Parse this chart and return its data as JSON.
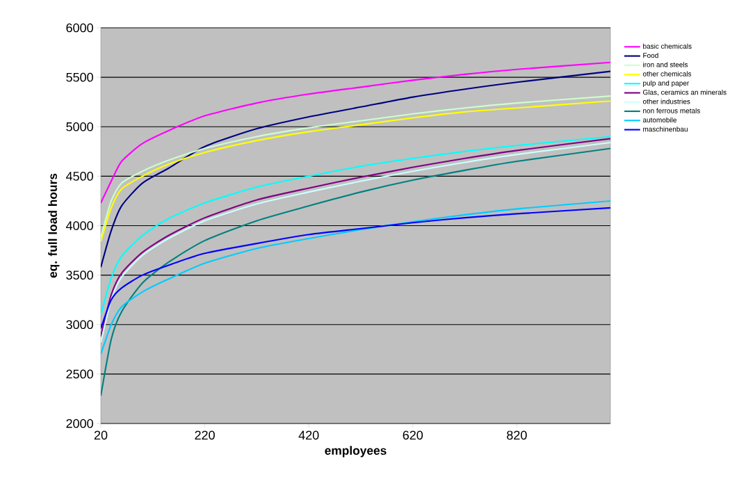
{
  "chart_data": {
    "type": "line",
    "xlabel": "employees",
    "ylabel": "eq. full load hours",
    "x": [
      20,
      40,
      60,
      100,
      150,
      220,
      320,
      420,
      520,
      620,
      720,
      820,
      1000
    ],
    "xlim": [
      20,
      1000
    ],
    "xticks": [
      20,
      220,
      420,
      620,
      820
    ],
    "ylim": [
      2000,
      6000
    ],
    "yticks": [
      2000,
      2500,
      3000,
      3500,
      4000,
      4500,
      5000,
      5500,
      6000
    ],
    "grid": "y",
    "legend": "right",
    "line_style": "solid",
    "series": [
      {
        "name": "basic chemicals",
        "color": "#ff00ff",
        "values": [
          4230,
          4450,
          4650,
          4830,
          4960,
          5110,
          5240,
          5330,
          5400,
          5470,
          5530,
          5580,
          5650
        ]
      },
      {
        "name": "Food",
        "color": "#000080",
        "values": [
          3580,
          3950,
          4200,
          4430,
          4580,
          4800,
          4980,
          5100,
          5200,
          5300,
          5380,
          5450,
          5560
        ]
      },
      {
        "name": "iron and steels",
        "color": "#ccffcc",
        "values": [
          3880,
          4250,
          4430,
          4550,
          4660,
          4780,
          4900,
          4990,
          5060,
          5130,
          5190,
          5240,
          5310
        ]
      },
      {
        "name": "other chemicals",
        "color": "#ffff00",
        "values": [
          3840,
          4180,
          4370,
          4500,
          4620,
          4740,
          4860,
          4950,
          5020,
          5090,
          5150,
          5190,
          5260
        ]
      },
      {
        "name": "pulp and paper",
        "color": "#00ffff",
        "values": [
          3100,
          3470,
          3690,
          3900,
          4070,
          4230,
          4390,
          4500,
          4600,
          4680,
          4750,
          4810,
          4900
        ]
      },
      {
        "name": "Glas, ceramics an minerals",
        "color": "#800080",
        "values": [
          2880,
          3300,
          3520,
          3730,
          3900,
          4080,
          4260,
          4380,
          4490,
          4590,
          4680,
          4760,
          4880
        ]
      },
      {
        "name": "other industries",
        "color": "#ccffff",
        "values": [
          2820,
          3250,
          3480,
          3700,
          3870,
          4050,
          4220,
          4340,
          4450,
          4550,
          4640,
          4720,
          4840
        ]
      },
      {
        "name": "non ferrous metals",
        "color": "#008080",
        "values": [
          2280,
          2850,
          3130,
          3420,
          3630,
          3850,
          4050,
          4200,
          4340,
          4460,
          4560,
          4650,
          4780
        ]
      },
      {
        "name": "automobile",
        "color": "#00ccff",
        "values": [
          2700,
          3000,
          3180,
          3330,
          3460,
          3620,
          3770,
          3870,
          3960,
          4040,
          4110,
          4170,
          4250
        ]
      },
      {
        "name": "maschinenbau",
        "color": "#0000ff",
        "values": [
          2960,
          3250,
          3370,
          3500,
          3600,
          3720,
          3820,
          3910,
          3970,
          4030,
          4080,
          4120,
          4180
        ]
      }
    ]
  }
}
